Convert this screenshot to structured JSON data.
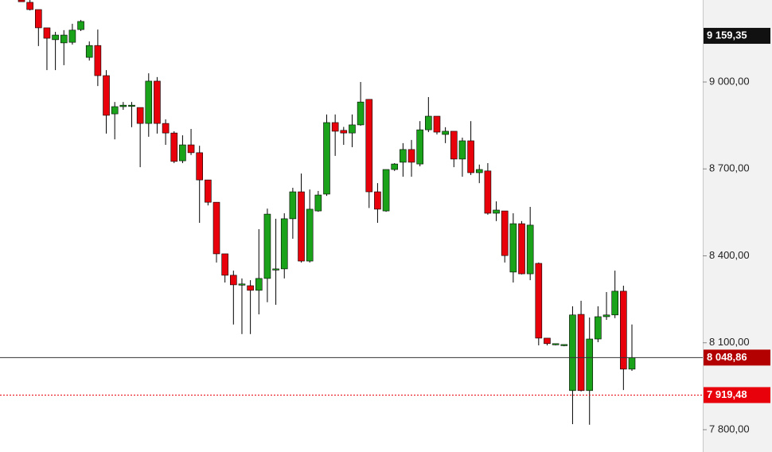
{
  "chart_data": {
    "type": "candlestick",
    "up_color": "#1aa31a",
    "down_color": "#e8000b",
    "wick_color": "#000000",
    "ylim": [
      7723,
      9283
    ],
    "yticks": [
      {
        "value": 9000,
        "label": "9 000,00"
      },
      {
        "value": 8700,
        "label": "8 700,00"
      },
      {
        "value": 8400,
        "label": "8 400,00"
      },
      {
        "value": 8100,
        "label": "8 100,00"
      },
      {
        "value": 7800,
        "label": "7 800,00"
      }
    ],
    "markers": [
      {
        "value": 9159.35,
        "label": "9 159,35",
        "color": "#111111"
      },
      {
        "value": 8048.86,
        "label": "8 048,86",
        "color": "#b30000",
        "line": "solid",
        "line_color": "#333333"
      },
      {
        "value": 7919.48,
        "label": "7 919,48",
        "color": "#e8000b",
        "line": "dotted",
        "line_color": "#e8000b"
      }
    ],
    "open": [
      9283,
      9275,
      9250,
      9187,
      9146,
      9135,
      9137,
      9181,
      9085,
      9126,
      9022,
      8890,
      8915,
      8920,
      8912,
      8857,
      9003,
      8857,
      8824,
      8728,
      8783,
      8756,
      8662,
      8585,
      8407,
      8333,
      8300,
      8297,
      8281,
      8322,
      8355,
      8355,
      8528,
      8621,
      8382,
      8555,
      8613,
      8860,
      8833,
      8824,
      8852,
      8940,
      8621,
      8555,
      8698,
      8723,
      8767,
      8717,
      8835,
      8882,
      8819,
      8830,
      8734,
      8797,
      8687,
      8693,
      8547,
      8555,
      8344,
      8511,
      8338,
      8374,
      8116,
      8094,
      8091,
      7935,
      8198,
      7935,
      8113,
      8190,
      8196,
      8278,
      8009
    ],
    "high": [
      9283,
      9283,
      9250,
      9187,
      9173,
      9179,
      9201,
      9214,
      9140,
      9181,
      9041,
      8931,
      8931,
      8931,
      8912,
      9030,
      9017,
      8871,
      8830,
      8816,
      8838,
      8780,
      8662,
      8585,
      8407,
      8349,
      8322,
      8316,
      8492,
      8563,
      8528,
      8547,
      8635,
      8684,
      8629,
      8624,
      8888,
      8888,
      8845,
      8888,
      9000,
      8940,
      8651,
      8698,
      8720,
      8789,
      8800,
      8865,
      8948,
      8882,
      8844,
      8830,
      8808,
      8865,
      8715,
      8720,
      8588,
      8542,
      8547,
      8520,
      8569,
      8377,
      8116,
      8097,
      8094,
      8226,
      8245,
      8187,
      8226,
      8275,
      8349,
      8297,
      8163
    ],
    "low": [
      9277,
      9247,
      9124,
      9041,
      9041,
      9058,
      9129,
      9176,
      9074,
      8986,
      8822,
      8802,
      8904,
      8844,
      8706,
      8811,
      8822,
      8783,
      8720,
      8720,
      8748,
      8514,
      8574,
      8377,
      8308,
      8163,
      8130,
      8130,
      8198,
      8240,
      8231,
      8322,
      8459,
      8377,
      8377,
      8552,
      8607,
      8745,
      8783,
      8775,
      8849,
      8565,
      8514,
      8552,
      8693,
      8673,
      8673,
      8709,
      8827,
      8819,
      8789,
      8706,
      8673,
      8679,
      8651,
      8542,
      8520,
      8377,
      8308,
      8336,
      8316,
      8091,
      8091,
      8091,
      8088,
      7819,
      7932,
      7817,
      8102,
      8179,
      8185,
      7937,
      8003
    ],
    "close": [
      9277,
      9250,
      9187,
      9151,
      9162,
      9162,
      9179,
      9209,
      9126,
      9022,
      8885,
      8915,
      8920,
      8920,
      8857,
      9003,
      8857,
      8824,
      8726,
      8783,
      8756,
      8662,
      8585,
      8407,
      8333,
      8300,
      8303,
      8281,
      8322,
      8544,
      8355,
      8528,
      8621,
      8382,
      8561,
      8610,
      8860,
      8830,
      8824,
      8852,
      8931,
      8621,
      8561,
      8698,
      8717,
      8767,
      8723,
      8835,
      8882,
      8827,
      8830,
      8734,
      8797,
      8687,
      8698,
      8547,
      8558,
      8401,
      8511,
      8338,
      8506,
      8116,
      8097,
      8097,
      8094,
      8196,
      7935,
      8113,
      8190,
      8196,
      8278,
      8009,
      8049
    ]
  }
}
